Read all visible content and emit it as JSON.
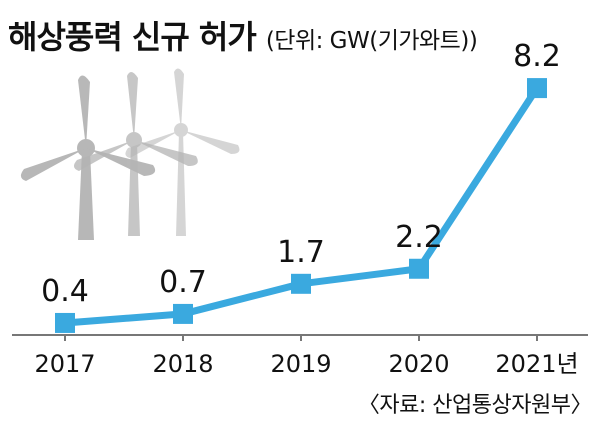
{
  "header": {
    "title": "해상풍력 신규 허가",
    "unit": "(단위: GW(기가와트))"
  },
  "source": "〈자료: 산업통상자원부〉",
  "colors": {
    "line": "#3aa9df",
    "marker": "#3aa9df",
    "axis": "#777777",
    "turbine": "#b4b4b4"
  },
  "decoration": {
    "icon": "wind-turbine-icon"
  },
  "chart_data": {
    "type": "line",
    "categories": [
      "2017",
      "2018",
      "2019",
      "2020",
      "2021년"
    ],
    "values": [
      0.4,
      0.7,
      1.7,
      2.2,
      8.2
    ],
    "value_labels": [
      "0.4",
      "0.7",
      "1.7",
      "2.2",
      "8.2"
    ],
    "title": "해상풍력 신규 허가",
    "xlabel": "",
    "ylabel": "",
    "unit": "GW(기가와트)",
    "ylim": [
      0,
      9
    ],
    "grid": false,
    "legend": "none"
  }
}
